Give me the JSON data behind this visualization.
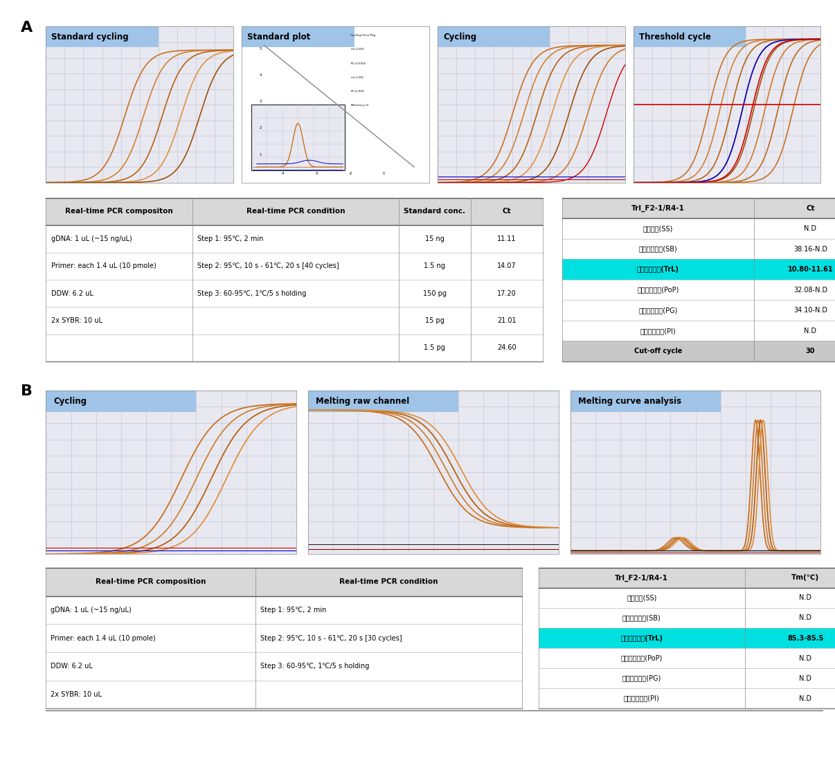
{
  "panel_A_label": "A",
  "panel_B_label": "B",
  "chart_titles_A": [
    "Standard cycling",
    "Standard plot",
    "Cycling",
    "Threshold cycle"
  ],
  "chart_titles_B": [
    "Cycling",
    "Melting raw channel",
    "Melting curve analysis"
  ],
  "title_bg_color": "#a0c4e8",
  "chart_bg_color": "#e8e8f0",
  "grid_color": "#c0c0d0",
  "table_A_left_headers": [
    "Real-time PCR compositon",
    "Real-time PCR condition"
  ],
  "table_A_left_rows": [
    [
      "gDNA: 1 uL (~15 ng/uL)",
      "Step 1: 95℃, 2 min"
    ],
    [
      "Primer: each 1.4 uL (10 pmole)",
      "Step 2: 95℃, 10 s - 61℃, 20 s [40 cycles]"
    ],
    [
      "DDW: 6.2 uL",
      "Step 3: 60-95℃, 1℃/5 s holding"
    ],
    [
      "2x SYBR: 10 uL",
      ""
    ]
  ],
  "table_A_mid_headers": [
    "Standard conc.",
    "Ct"
  ],
  "table_A_mid_rows": [
    [
      "15 ng",
      "11.11"
    ],
    [
      "1.5 ng",
      "14.07"
    ],
    [
      "150 pg",
      "17.20"
    ],
    [
      "15 pg",
      "21.01"
    ],
    [
      "1.5 pg",
      "24.60"
    ]
  ],
  "table_A_right_headers": [
    "TrI_F2-1/R4-1",
    "Ct"
  ],
  "table_A_right_rows": [
    [
      "상활버섯(SS)",
      "N.D"
    ],
    [
      "장수진흘버섯(SB)",
      "38.16-N.D"
    ],
    [
      "목질진흘버섯(TrL)",
      "10.80-11.61"
    ],
    [
      "낙엽송충버섯(PoP)",
      "32.08-N.D"
    ],
    [
      "마른진흘버섯(PG)",
      "34.10-N.D"
    ],
    [
      "말통진흘버섯(PI)",
      "N.D"
    ],
    [
      "Cut-off cycle",
      "30"
    ]
  ],
  "highlight_row_A": 2,
  "highlight_color": "#00e0e0",
  "cutoff_bg": "#c8c8c8",
  "table_B_left_headers": [
    "Real-time PCR composition",
    "Real-time PCR condition"
  ],
  "table_B_left_rows": [
    [
      "gDNA: 1 uL (~15 ng/uL)",
      "Step 1: 95℃, 2 min"
    ],
    [
      "Primer: each 1.4 uL (10 pmole)",
      "Step 2: 95℃, 10 s - 61℃, 20 s [30 cycles]"
    ],
    [
      "DDW: 6.2 uL",
      "Step 3: 60-95℃, 1℃/5 s holding"
    ],
    [
      "2x SYBR: 10 uL",
      ""
    ]
  ],
  "table_B_right_headers": [
    "TrI_F2-1/R4-1",
    "Tm(℃)"
  ],
  "table_B_right_rows": [
    [
      "상활버섯(SS)",
      "N.D"
    ],
    [
      "장수진흘버섯(SB)",
      "N.D"
    ],
    [
      "목질진흘버섯(TrL)",
      "85.3-85.5"
    ],
    [
      "낙엽송충버섯(PoP)",
      "N.D"
    ],
    [
      "마른진흘버섯(PG)",
      "N.D"
    ],
    [
      "말통진흘버섯(PI)",
      "N.D"
    ]
  ],
  "highlight_row_B": 2,
  "orange_shades": [
    "#c87020",
    "#d08030",
    "#b86010",
    "#e09040",
    "#a05008",
    "#d07828",
    "#c06818"
  ],
  "red_color": "#cc0000",
  "blue_color": "#0000cc",
  "darkred_color": "#8B0000"
}
